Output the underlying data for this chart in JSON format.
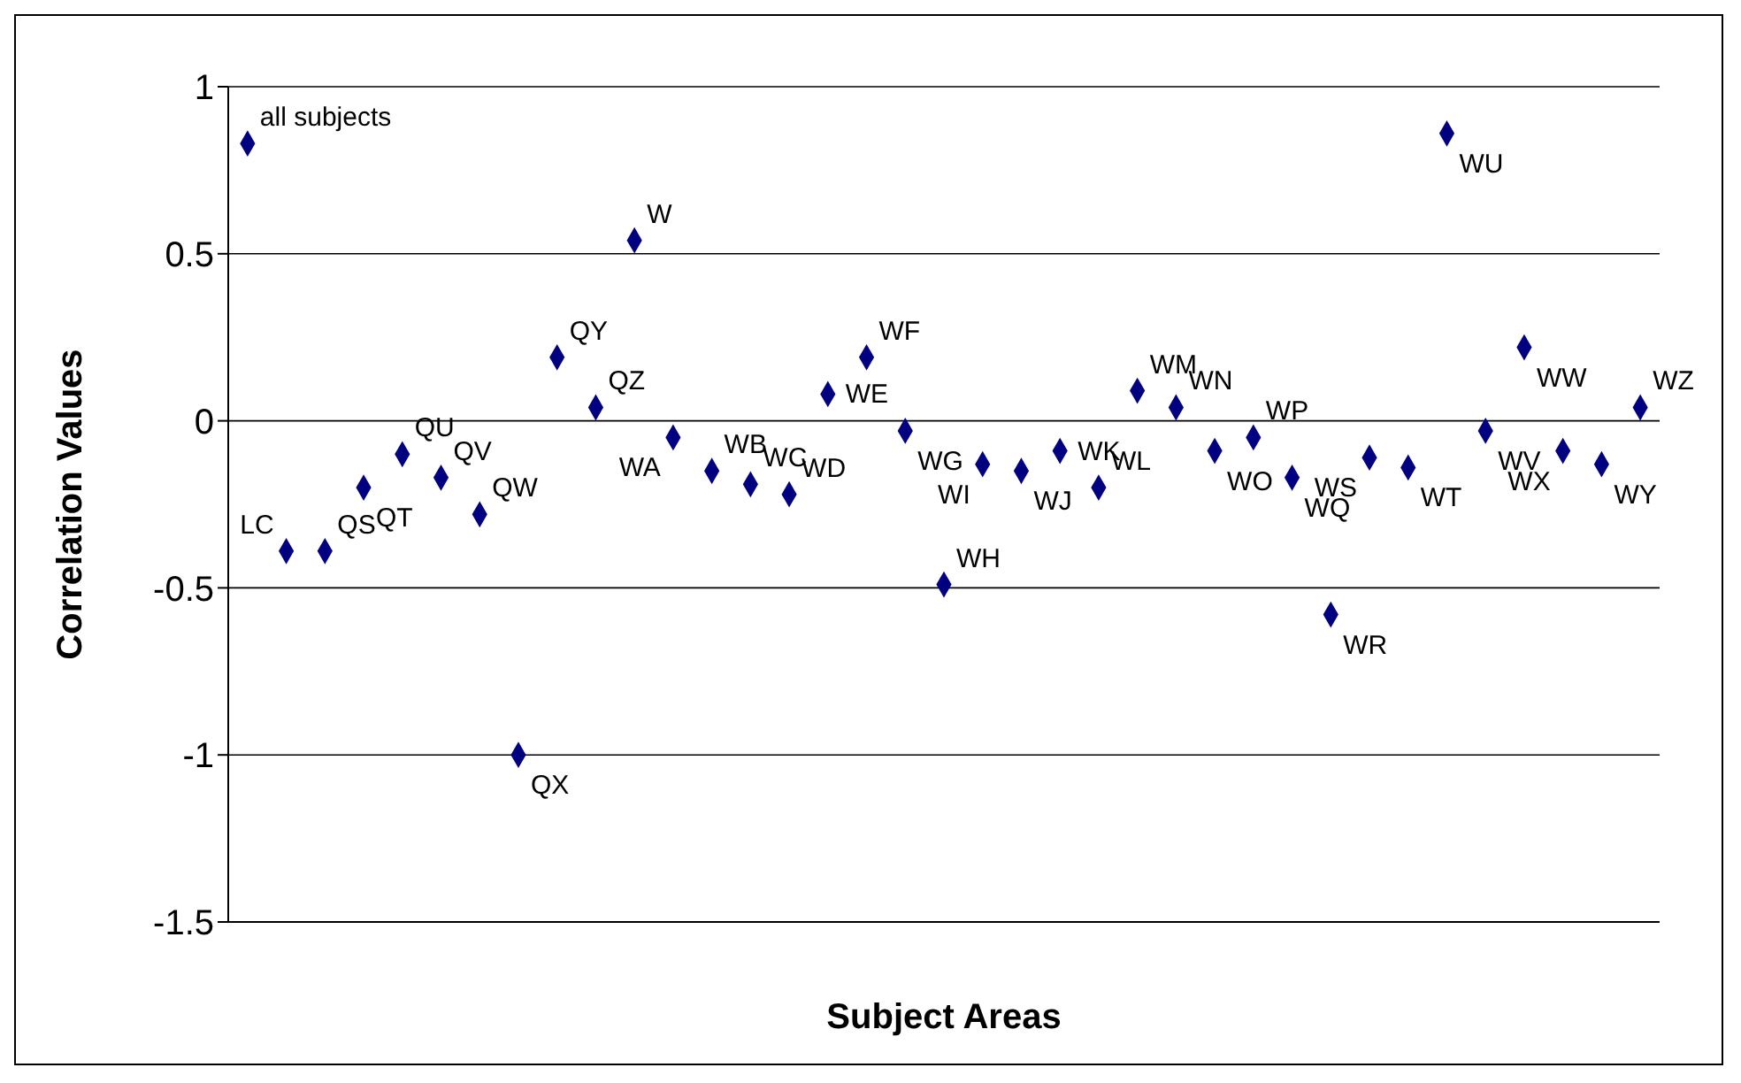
{
  "chart_data": {
    "type": "scatter",
    "xlabel": "Subject Areas",
    "ylabel": "Correlation Values",
    "categories": [
      null,
      null,
      null,
      null,
      null,
      null,
      null,
      null,
      null,
      null,
      null,
      null,
      null,
      null,
      null,
      null,
      null,
      null,
      null,
      null,
      null,
      null,
      null,
      null,
      null,
      null,
      null,
      null,
      null,
      null,
      null,
      null,
      null,
      null,
      null,
      null,
      null
    ],
    "series": [
      {
        "color": "#000080",
        "values": [
          0.83,
          -0.39,
          -0.39,
          -0.2,
          -0.1,
          -0.17,
          -0.28,
          -1.0,
          0.19,
          0.04,
          0.54,
          -0.05,
          -0.15,
          -0.19,
          -0.22,
          0.08,
          0.19,
          -0.03,
          -0.49,
          -0.13,
          -0.15,
          -0.09,
          -0.2,
          0.09,
          0.04,
          -0.09,
          -0.05,
          -0.17,
          -0.58,
          -0.11,
          -0.14,
          0.86,
          -0.03,
          0.22,
          -0.09,
          -0.13,
          0.04
        ],
        "value_labels": [
          "all subjects",
          "LC",
          "QS",
          "QT",
          "QU",
          "QV",
          "QW",
          "QX",
          "QY",
          "QZ",
          "W",
          "WA",
          "WB",
          "WC",
          "WD",
          "WE",
          "WF",
          "WG",
          "WH",
          "WI",
          "WJ",
          "WK",
          "WL",
          "WM",
          "WN",
          "WO",
          "WP",
          "WQ",
          "WR",
          "WS",
          "WT",
          "WU",
          "WV",
          "WW",
          "WX",
          "WY",
          "WZ"
        ]
      }
    ],
    "ylim": [
      -1.5,
      1
    ],
    "yticks": [
      -1.5,
      -1,
      -0.5,
      0,
      0.5,
      1
    ],
    "grid": "y",
    "marker": "diamond",
    "tick_labels": "y"
  }
}
